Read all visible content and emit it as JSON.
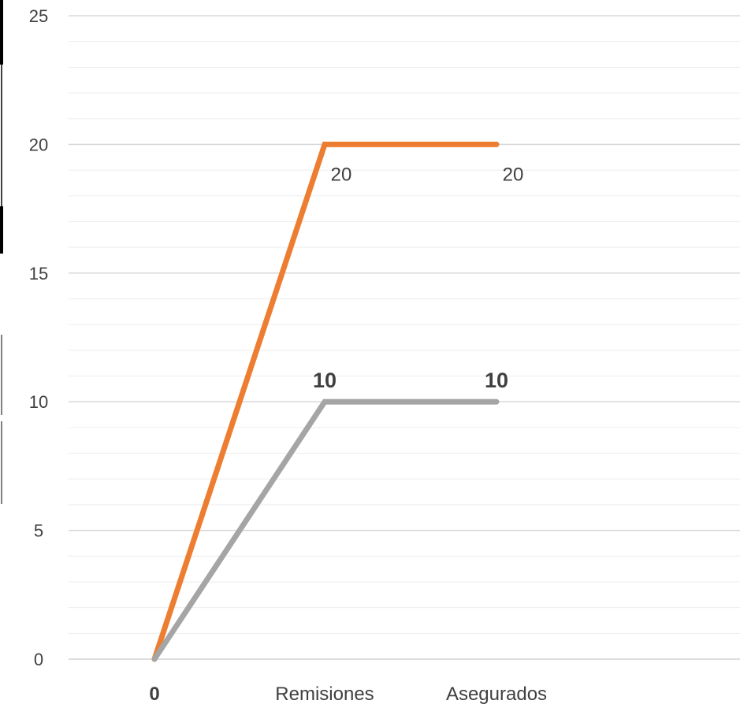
{
  "chart_data": {
    "type": "line",
    "categories": [
      "0",
      "Remisiones",
      "Asegurados"
    ],
    "series": [
      {
        "values": [
          0,
          20,
          20
        ],
        "color": "#ED7D31",
        "data_labels": [
          "20",
          "20"
        ],
        "label_style": "normal"
      },
      {
        "values": [
          0,
          10,
          10
        ],
        "color": "#A5A5A5",
        "data_labels": [
          "10",
          "10"
        ],
        "label_style": "bold"
      }
    ],
    "ylim": [
      0,
      25
    ],
    "yticks": [
      0,
      5,
      10,
      15,
      20,
      25
    ],
    "grid": true,
    "legend": "none",
    "title": "",
    "xlabel": "",
    "ylabel": ""
  }
}
